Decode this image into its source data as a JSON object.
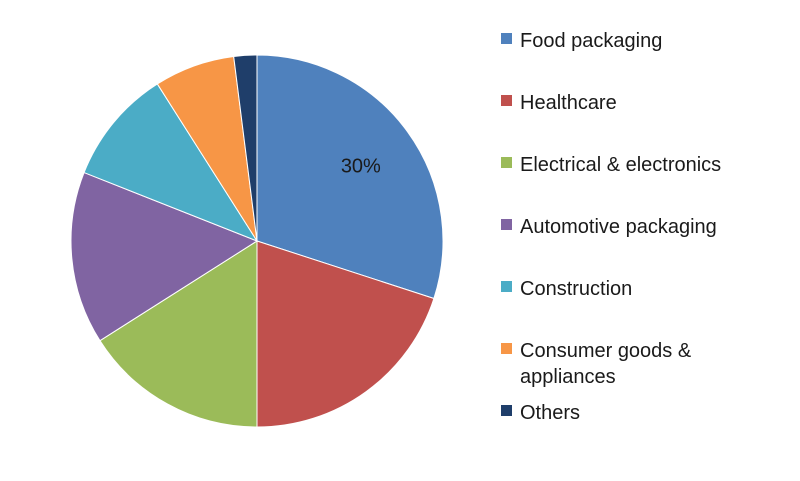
{
  "chart_data": {
    "type": "pie",
    "categories": [
      "Food packaging",
      "Healthcare",
      "Electrical & electronics",
      "Automotive packaging",
      "Construction",
      "Consumer goods & appliances",
      "Others"
    ],
    "values": [
      30,
      20,
      16,
      15,
      10,
      7,
      2
    ],
    "colors": [
      "#4F81BD",
      "#C0504D",
      "#9BBB59",
      "#8064A2",
      "#4BACC6",
      "#F79646",
      "#1F3E6A"
    ],
    "data_labels": [
      "30%",
      "",
      "",
      "",
      "",
      "",
      ""
    ],
    "legend_position": "right",
    "start_angle": "top, clockwise"
  }
}
